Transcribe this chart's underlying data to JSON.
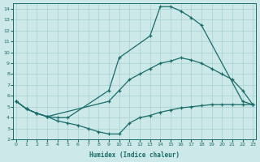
{
  "bg_color": "#cce8e8",
  "line_color": "#1a6b6b",
  "xlabel": "Humidex (Indice chaleur)",
  "xlim": [
    -0.3,
    23.3
  ],
  "ylim": [
    2,
    14.5
  ],
  "xticks": [
    0,
    1,
    2,
    3,
    4,
    5,
    6,
    7,
    8,
    9,
    10,
    11,
    12,
    13,
    14,
    15,
    16,
    17,
    18,
    19,
    20,
    21,
    22,
    23
  ],
  "yticks": [
    2,
    3,
    4,
    5,
    6,
    7,
    8,
    9,
    10,
    11,
    12,
    13,
    14
  ],
  "line1_x": [
    0,
    1,
    2,
    3,
    4,
    5,
    9,
    10,
    13,
    14,
    15,
    16,
    17,
    18,
    22,
    23
  ],
  "line1_y": [
    5.5,
    4.8,
    4.4,
    4.1,
    4.0,
    4.0,
    6.5,
    9.5,
    11.5,
    14.2,
    14.2,
    13.8,
    13.2,
    12.5,
    5.5,
    5.2
  ],
  "line2_x": [
    0,
    1,
    2,
    3,
    9,
    10,
    11,
    12,
    13,
    14,
    15,
    16,
    17,
    18,
    19,
    20,
    21,
    22,
    23
  ],
  "line2_y": [
    5.5,
    4.8,
    4.4,
    4.1,
    5.5,
    6.5,
    7.5,
    8.0,
    8.5,
    9.0,
    9.2,
    9.5,
    9.3,
    9.0,
    8.5,
    8.0,
    7.5,
    6.5,
    5.2
  ],
  "line3_x": [
    0,
    1,
    2,
    3,
    4,
    5,
    6,
    7,
    8,
    9,
    10,
    11,
    12,
    13,
    14,
    15,
    16,
    17,
    18,
    19,
    20,
    21,
    22,
    23
  ],
  "line3_y": [
    5.5,
    4.8,
    4.4,
    4.1,
    3.7,
    3.5,
    3.3,
    3.0,
    2.7,
    2.5,
    2.5,
    3.5,
    4.0,
    4.2,
    4.5,
    4.7,
    4.9,
    5.0,
    5.1,
    5.2,
    5.2,
    5.2,
    5.2,
    5.2
  ]
}
